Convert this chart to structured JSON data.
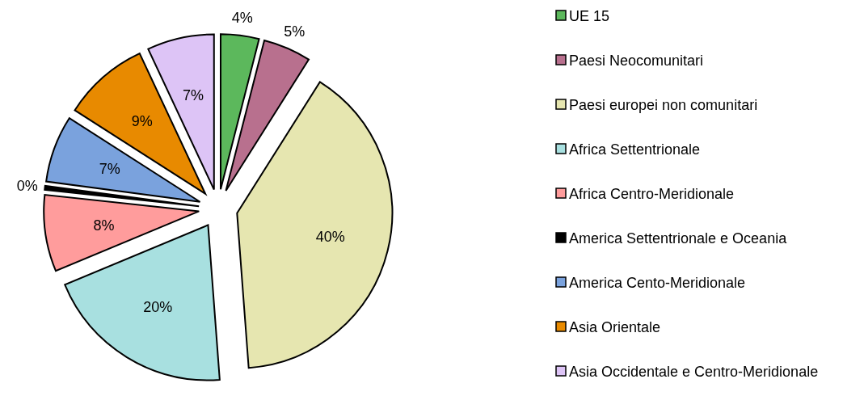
{
  "chart_data": {
    "type": "pie",
    "categories": [
      "UE 15",
      "Paesi Neocomunitari",
      "Paesi europei non comunitari",
      "Africa Settentrionale",
      "Africa Centro-Meridionale",
      "America Settentrionale e Oceania",
      "America Cento-Meridionale",
      "Asia Orientale",
      "Asia Occidentale e Centro-Meridionale"
    ],
    "values": [
      4,
      5,
      40,
      20,
      8,
      0.4,
      7,
      9,
      7
    ],
    "value_labels": [
      "4%",
      "5%",
      "40%",
      "20%",
      "8%",
      "0%",
      "7%",
      "9%",
      "7%"
    ],
    "colors": [
      "#5cb85c",
      "#b8708e",
      "#e6e6b0",
      "#a8e0e0",
      "#ff9c9c",
      "#000000",
      "#7aa2dd",
      "#e88a00",
      "#ddc4f6"
    ],
    "legend": "right"
  }
}
